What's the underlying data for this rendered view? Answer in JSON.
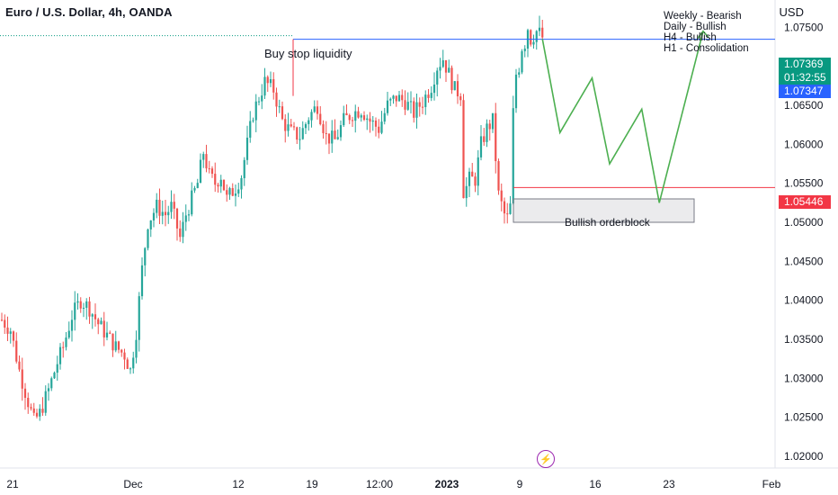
{
  "header": {
    "title": "Euro / U.S. Dollar, 4h, OANDA",
    "unit": "USD"
  },
  "notes": [
    "Weekly - Bearish",
    "Daily - Bullish",
    "H4 - Bullish",
    "H1 - Consolidation"
  ],
  "annotations": {
    "liquidity": "Buy stop liquidity",
    "orderblock": "Bullish orderblock"
  },
  "price_tags": {
    "current_price": "1.07369",
    "countdown": "01:32:55",
    "blue_line": "1.07347",
    "red_line": "1.05446"
  },
  "colors": {
    "up": "#26a69a",
    "down": "#ef5350",
    "projection": "#4caf50",
    "current_tag": "#089981",
    "blue_tag": "#2962ff",
    "red_tag": "#f23645"
  },
  "chart_data": {
    "type": "candlestick",
    "title": "Euro / U.S. Dollar, 4h, OANDA",
    "y_unit": "USD",
    "ylim": [
      1.0185,
      1.0785
    ],
    "y_ticks": [
      "1.02000",
      "1.02500",
      "1.03000",
      "1.03500",
      "1.04000",
      "1.04500",
      "1.05000",
      "1.05500",
      "1.06000",
      "1.06500",
      "1.07000",
      "1.07500"
    ],
    "x_ticks": [
      "21",
      "Dec",
      "12",
      "19",
      "12:00",
      "2023",
      "9",
      "16",
      "23",
      "Feb"
    ],
    "price_path": [
      [
        0,
        1.0375
      ],
      [
        3,
        1.0362
      ],
      [
        6,
        1.031
      ],
      [
        9,
        1.027
      ],
      [
        11,
        1.0245
      ],
      [
        13,
        1.0255
      ],
      [
        16,
        1.0285
      ],
      [
        19,
        1.032
      ],
      [
        21,
        1.034
      ],
      [
        24,
        1.038
      ],
      [
        27,
        1.04
      ],
      [
        30,
        1.039
      ],
      [
        33,
        1.037
      ],
      [
        36,
        1.0355
      ],
      [
        39,
        1.034
      ],
      [
        42,
        1.033
      ],
      [
        44,
        1.031
      ],
      [
        46,
        1.036
      ],
      [
        48,
        1.044
      ],
      [
        50,
        1.05
      ],
      [
        53,
        1.052
      ],
      [
        56,
        1.051
      ],
      [
        58,
        1.052
      ],
      [
        61,
        1.048
      ],
      [
        63,
        1.051
      ],
      [
        65,
        1.053
      ],
      [
        67,
        1.055
      ],
      [
        69,
        1.059
      ],
      [
        71,
        1.056
      ],
      [
        73,
        1.055
      ],
      [
        75,
        1.056
      ],
      [
        77,
        1.053
      ],
      [
        80,
        1.0545
      ],
      [
        82,
        1.056
      ],
      [
        84,
        1.06
      ],
      [
        86,
        1.064
      ],
      [
        88,
        1.066
      ],
      [
        90,
        1.068
      ],
      [
        93,
        1.067
      ],
      [
        96,
        1.063
      ],
      [
        99,
        1.0615
      ],
      [
        102,
        1.061
      ],
      [
        105,
        1.0635
      ],
      [
        108,
        1.065
      ],
      [
        111,
        1.061
      ],
      [
        114,
        1.0605
      ],
      [
        117,
        1.063
      ],
      [
        120,
        1.064
      ],
      [
        123,
        1.0645
      ],
      [
        126,
        1.063
      ],
      [
        129,
        1.062
      ],
      [
        132,
        1.065
      ],
      [
        135,
        1.066
      ],
      [
        138,
        1.0655
      ],
      [
        141,
        1.064
      ],
      [
        144,
        1.0655
      ],
      [
        147,
        1.0675
      ],
      [
        149,
        1.07
      ],
      [
        151,
        1.071
      ],
      [
        153,
        1.069
      ],
      [
        155,
        1.067
      ],
      [
        157,
        1.0665
      ],
      [
        158,
        1.054
      ],
      [
        159,
        1.0545
      ],
      [
        160,
        1.0555
      ],
      [
        162,
        1.0555
      ],
      [
        164,
        1.06
      ],
      [
        166,
        1.062
      ],
      [
        168,
        1.063
      ],
      [
        170,
        1.0535
      ],
      [
        172,
        1.051
      ],
      [
        173,
        1.0505
      ],
      [
        174,
        1.052
      ],
      [
        175,
        1.064
      ],
      [
        176,
        1.069
      ],
      [
        177,
        1.07
      ],
      [
        178,
        1.0725
      ],
      [
        179,
        1.073
      ],
      [
        180,
        1.075
      ],
      [
        181,
        1.0735
      ],
      [
        182,
        1.074
      ],
      [
        183,
        1.0745
      ],
      [
        184,
        1.0742
      ],
      [
        185,
        1.0737
      ]
    ],
    "levels": [
      {
        "label": "current",
        "value": 1.07369
      },
      {
        "label": "blue",
        "value": 1.07347
      },
      {
        "label": "red",
        "value": 1.05446
      }
    ],
    "zones": [
      {
        "label": "Bullish orderblock",
        "from": 1.05,
        "to": 1.053
      }
    ],
    "projection_path": [
      [
        185,
        1.0735
      ],
      [
        191,
        1.0615
      ],
      [
        202,
        1.0685
      ],
      [
        208,
        1.0575
      ],
      [
        219,
        1.0645
      ],
      [
        225,
        1.0525
      ],
      [
        240,
        1.0745
      ]
    ],
    "grid": false,
    "legend": "none"
  }
}
